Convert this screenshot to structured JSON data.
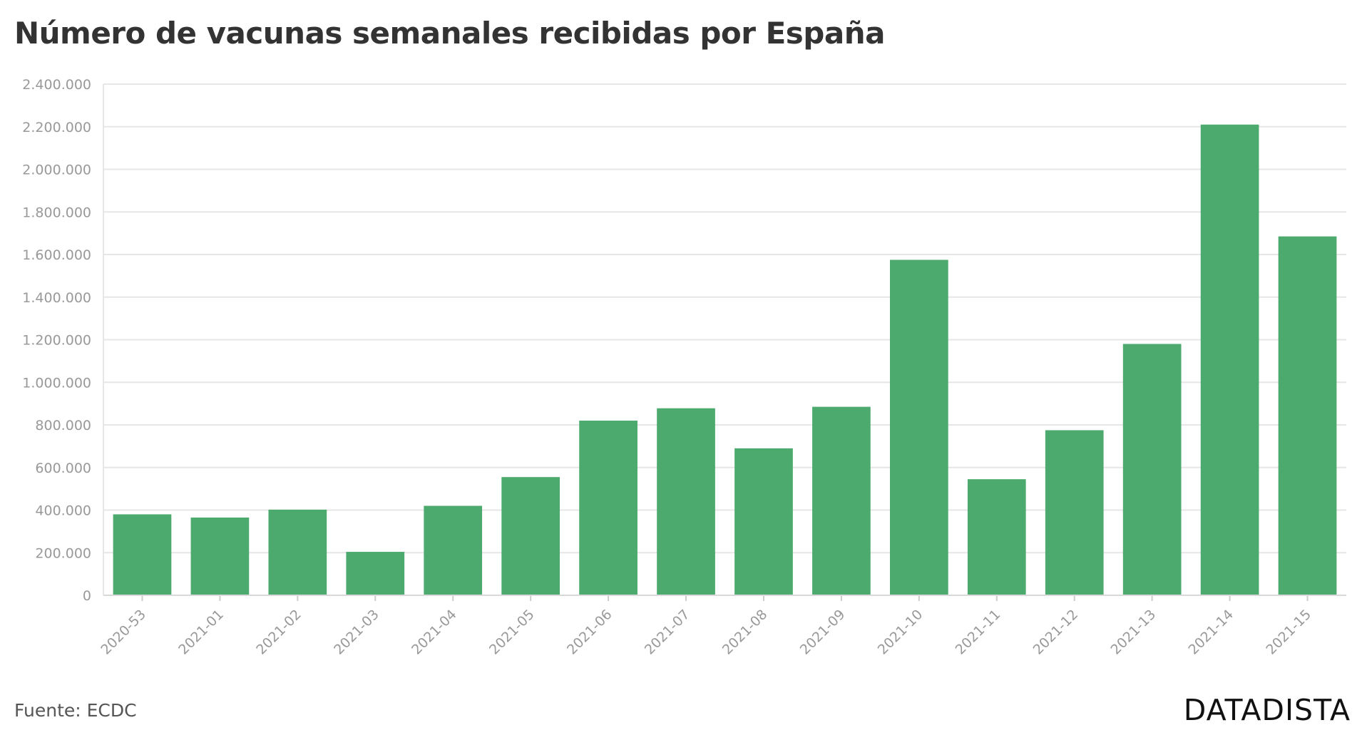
{
  "colors": {
    "bar": "#4caa6e",
    "grid": "#e6e6e6",
    "axis_text": "#999999",
    "title": "#333333"
  },
  "header": {
    "title": "Número de vacunas semanales recibidas por España"
  },
  "footer": {
    "source": "Fuente: ECDC",
    "brand": "DATADISTA"
  },
  "chart_data": {
    "type": "bar",
    "title": "Número de vacunas semanales recibidas por España",
    "xlabel": "",
    "ylabel": "",
    "ylim": [
      0,
      2400000
    ],
    "yticks": [
      0,
      200000,
      400000,
      600000,
      800000,
      1000000,
      1200000,
      1400000,
      1600000,
      1800000,
      2000000,
      2200000,
      2400000
    ],
    "ytick_labels": [
      "0",
      "200.000",
      "400.000",
      "600.000",
      "800.000",
      "1.000.000",
      "1.200.000",
      "1.400.000",
      "1.600.000",
      "1.800.000",
      "2.000.000",
      "2.200.000",
      "2.400.000"
    ],
    "grid": true,
    "legend": "none",
    "categories": [
      "2020-53",
      "2021-01",
      "2021-02",
      "2021-03",
      "2021-04",
      "2021-05",
      "2021-06",
      "2021-07",
      "2021-08",
      "2021-09",
      "2021-10",
      "2021-11",
      "2021-12",
      "2021-13",
      "2021-14",
      "2021-15"
    ],
    "values": [
      380000,
      365000,
      402000,
      204000,
      420000,
      555000,
      820000,
      878000,
      690000,
      885000,
      1575000,
      545000,
      775000,
      1180000,
      2210000,
      1685000
    ]
  }
}
